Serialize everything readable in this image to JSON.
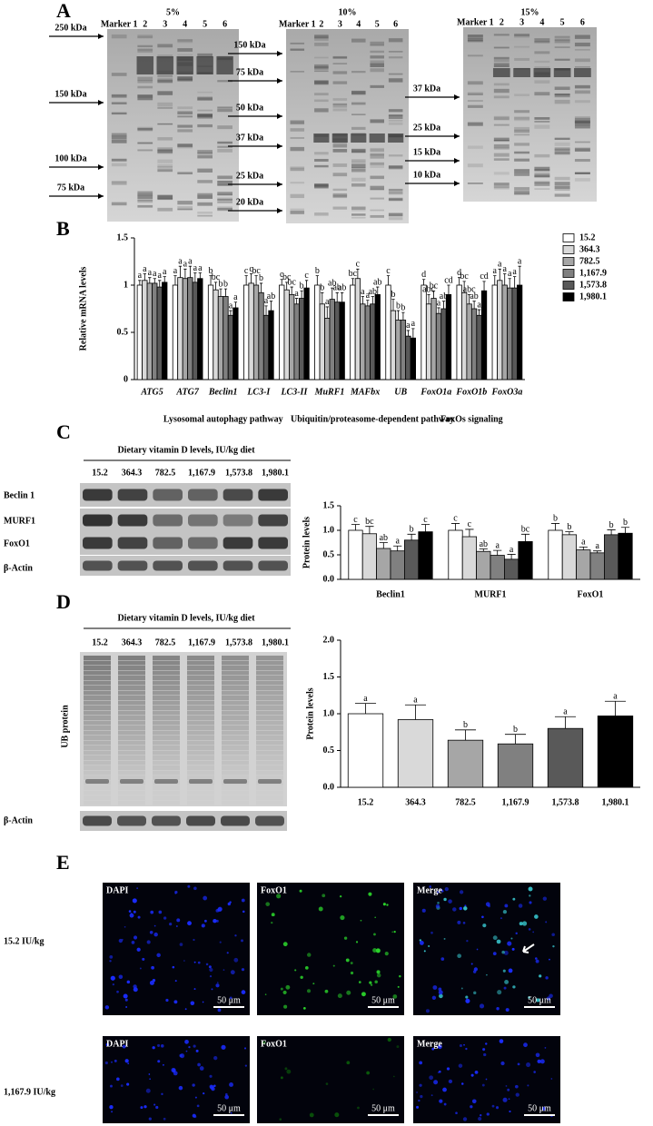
{
  "panels": {
    "A": {
      "label": "A",
      "gels": [
        {
          "title": "5%",
          "lanes": [
            "Marker 1",
            "2",
            "3",
            "4",
            "5",
            "6"
          ],
          "markers": [
            "250 kDa",
            "150 kDa",
            "100 kDa",
            "75 kDa"
          ]
        },
        {
          "title": "10%",
          "lanes": [
            "Marker 1",
            "2",
            "3",
            "4",
            "5",
            "6"
          ],
          "markers": [
            "150 kDa",
            "75 kDa",
            "50 kDa",
            "37 kDa",
            "25 kDa",
            "20 kDa"
          ]
        },
        {
          "title": "15%",
          "lanes": [
            "Marker 1",
            "2",
            "3",
            "4",
            "5",
            "6"
          ],
          "markers": [
            "37 kDa",
            "25 kDa",
            "15 kDa",
            "10 kDa"
          ]
        }
      ]
    },
    "B": {
      "label": "B",
      "groups": [
        "Lysosomal autophagy pathway",
        "Ubiquitin/proteasome-dependent pathway",
        "FoxOs signaling"
      ]
    },
    "C": {
      "label": "C",
      "blot_title": "Dietary vitamin D levels, IU/kg diet",
      "lanes": [
        "15.2",
        "364.3",
        "782.5",
        "1,167.9",
        "1,573.8",
        "1,980.1"
      ],
      "rows": [
        "Beclin 1",
        "MURF1",
        "FoxO1",
        "β-Actin"
      ]
    },
    "D": {
      "label": "D",
      "blot_title": "Dietary vitamin D levels, IU/kg diet",
      "lanes": [
        "15.2",
        "364.3",
        "782.5",
        "1,167.9",
        "1,573.8",
        "1,980.1"
      ],
      "rows": [
        "UB protein",
        "β-Actin"
      ]
    },
    "E": {
      "label": "E",
      "columns": [
        "DAPI",
        "FoxO1",
        "Merge"
      ],
      "rows": [
        "15.2 IU/kg",
        "1,167.9 IU/kg"
      ],
      "scale_bar": "50 μm"
    }
  },
  "chart_data": [
    {
      "type": "bar",
      "y_label": "Relative mRNA levels",
      "category_style": "italic",
      "legend": "right",
      "categories": [
        "ATG5",
        "ATG7",
        "Beclin1",
        "LC3-I",
        "LC3-II",
        "MuRF1",
        "MAFbx",
        "UB",
        "FoxO1a",
        "FoxO1b",
        "FoxO3a"
      ],
      "ylim": [
        0,
        1.5
      ],
      "yticks": [
        0,
        0.5,
        1,
        1.5
      ],
      "series": [
        {
          "name": "15.2",
          "color": "#ffffff",
          "values": [
            1.0,
            1.0,
            1.0,
            1.0,
            1.0,
            1.0,
            1.0,
            1.0,
            1.0,
            1.0,
            1.0
          ],
          "errors": [
            0.05,
            0.1,
            0.1,
            0.1,
            0.06,
            0.1,
            0.07,
            0.1,
            0.06,
            0.08,
            0.1
          ],
          "letters": [
            "a",
            "a",
            "b",
            "c",
            "c",
            "b",
            "bc",
            "c",
            "d",
            "d",
            "a"
          ]
        },
        {
          "name": "364.3",
          "color": "#d9d9d9",
          "values": [
            1.05,
            1.08,
            0.95,
            1.02,
            0.95,
            0.8,
            1.07,
            0.73,
            0.8,
            0.92,
            1.05
          ],
          "errors": [
            0.07,
            0.12,
            0.08,
            0.1,
            0.08,
            0.12,
            0.1,
            0.12,
            0.1,
            0.12,
            0.12
          ],
          "letters": [
            "a",
            "a",
            "bc",
            "c",
            "bc",
            "b",
            "c",
            "b",
            "abc",
            "bc",
            "a"
          ]
        },
        {
          "name": "782.5",
          "color": "#a6a6a6",
          "values": [
            1.02,
            1.07,
            0.88,
            1.0,
            0.9,
            0.65,
            0.8,
            0.63,
            0.86,
            0.8,
            1.0
          ],
          "errors": [
            0.06,
            0.1,
            0.08,
            0.1,
            0.08,
            0.12,
            0.08,
            0.1,
            0.08,
            0.1,
            0.12
          ],
          "letters": [
            "a",
            "a",
            "b",
            "bc",
            "bc",
            "a",
            "a",
            "b",
            "bc",
            "abc",
            "a"
          ]
        },
        {
          "name": "1,167.9",
          "color": "#808080",
          "values": [
            1.02,
            1.08,
            0.88,
            0.92,
            0.8,
            0.85,
            0.78,
            0.63,
            0.7,
            0.75,
            0.97
          ],
          "errors": [
            0.05,
            0.12,
            0.08,
            0.1,
            0.06,
            0.12,
            0.06,
            0.08,
            0.06,
            0.08,
            0.1
          ],
          "letters": [
            "a",
            "a",
            "b",
            "b",
            "a",
            "ab",
            "a",
            "b",
            "a",
            "ab",
            "a"
          ]
        },
        {
          "name": "1,573.8",
          "color": "#595959",
          "values": [
            0.98,
            1.03,
            0.68,
            0.68,
            0.86,
            0.82,
            0.8,
            0.46,
            0.75,
            0.68,
            0.97
          ],
          "errors": [
            0.07,
            0.1,
            0.05,
            0.1,
            0.08,
            0.1,
            0.08,
            0.06,
            0.08,
            0.06,
            0.12
          ],
          "letters": [
            "a",
            "a",
            "a",
            "a",
            "b",
            "ab",
            "ab",
            "a",
            "ab",
            "a",
            "a"
          ]
        },
        {
          "name": "1,980.1",
          "color": "#000000",
          "values": [
            1.03,
            1.07,
            0.76,
            0.73,
            0.97,
            0.82,
            0.9,
            0.44,
            0.9,
            0.94,
            1.0
          ],
          "errors": [
            0.06,
            0.06,
            0.06,
            0.1,
            0.08,
            0.1,
            0.08,
            0.1,
            0.1,
            0.1,
            0.2
          ],
          "letters": [
            "a",
            "a",
            "a",
            "ab",
            "c",
            "ab",
            "ab",
            "a",
            "cd",
            "cd",
            "a"
          ]
        }
      ]
    },
    {
      "type": "bar",
      "y_label": "Protein levels",
      "categories": [
        "Beclin1",
        "MURF1",
        "FoxO1"
      ],
      "ylim": [
        0,
        1.5
      ],
      "yticks": [
        {
          "value": 0,
          "label": "0.0"
        },
        {
          "value": 0.5,
          "label": "0.5"
        },
        {
          "value": 1,
          "label": "1.0"
        },
        {
          "value": 1.5,
          "label": "1.5"
        }
      ],
      "series": [
        {
          "name": "15.2",
          "color": "#ffffff",
          "values": [
            1.0,
            1.0,
            1.0
          ],
          "errors": [
            0.12,
            0.14,
            0.14
          ],
          "letters": [
            "c",
            "c",
            "b"
          ]
        },
        {
          "name": "364.3",
          "color": "#d9d9d9",
          "values": [
            0.93,
            0.87,
            0.91
          ],
          "errors": [
            0.15,
            0.15,
            0.06
          ],
          "letters": [
            "bc",
            "c",
            "b"
          ]
        },
        {
          "name": "782.5",
          "color": "#a6a6a6",
          "values": [
            0.63,
            0.57,
            0.6
          ],
          "errors": [
            0.12,
            0.05,
            0.06
          ],
          "letters": [
            "ab",
            "ab",
            "a"
          ]
        },
        {
          "name": "1,167.9",
          "color": "#808080",
          "values": [
            0.58,
            0.49,
            0.54
          ],
          "errors": [
            0.1,
            0.1,
            0.04
          ],
          "letters": [
            "a",
            "a",
            "a"
          ]
        },
        {
          "name": "1,573.8",
          "color": "#595959",
          "values": [
            0.8,
            0.41,
            0.91
          ],
          "errors": [
            0.12,
            0.1,
            0.1
          ],
          "letters": [
            "b",
            "a",
            "b"
          ]
        },
        {
          "name": "1,980.1",
          "color": "#000000",
          "values": [
            0.97,
            0.77,
            0.94
          ],
          "errors": [
            0.15,
            0.15,
            0.12
          ],
          "letters": [
            "c",
            "bc",
            "b"
          ]
        }
      ]
    },
    {
      "type": "bar",
      "y_label": "Protein levels",
      "categories": [
        "15.2",
        "364.3",
        "782.5",
        "1,167.9",
        "1,573.8",
        "1,980.1"
      ],
      "colors": [
        "#ffffff",
        "#d9d9d9",
        "#a6a6a6",
        "#808080",
        "#595959",
        "#000000"
      ],
      "values": [
        1.0,
        0.92,
        0.64,
        0.59,
        0.8,
        0.97
      ],
      "errors": [
        0.14,
        0.2,
        0.14,
        0.13,
        0.16,
        0.2
      ],
      "letters": [
        "a",
        "a",
        "b",
        "b",
        "a",
        "a"
      ],
      "ylim": [
        0,
        2
      ],
      "yticks": [
        {
          "value": 0,
          "label": "0.0"
        },
        {
          "value": 0.5,
          "label": "0.5"
        },
        {
          "value": 1,
          "label": "1.0"
        },
        {
          "value": 1.5,
          "label": "1.5"
        },
        {
          "value": 2,
          "label": "2.0"
        }
      ]
    }
  ]
}
